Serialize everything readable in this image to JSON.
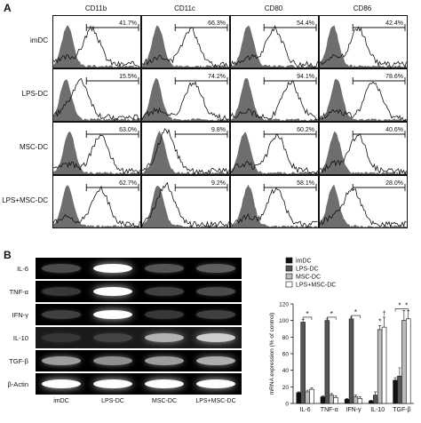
{
  "panelA": {
    "label": "A",
    "columns": [
      "CD11b",
      "CD11c",
      "CD80",
      "CD86"
    ],
    "rows": [
      {
        "label": "imDC",
        "values": [
          "41.7%",
          "66.3%",
          "54.4%",
          "42.4%"
        ]
      },
      {
        "label": "LPS-DC",
        "values": [
          "15.5%",
          "74.2%",
          "94.1%",
          "78.6%"
        ]
      },
      {
        "label": "MSC-DC",
        "values": [
          "63.0%",
          "9.8%",
          "60.2%",
          "40.6%"
        ]
      },
      {
        "label": "LPS+MSC-DC",
        "values": [
          "62.7%",
          "9.2%",
          "58.1%",
          "28.0%"
        ]
      }
    ]
  },
  "panelB": {
    "label": "B",
    "gel_rows": [
      "IL-6",
      "TNF-α",
      "IFN-γ",
      "IL-10",
      "TGF-β",
      "β-Actin"
    ],
    "lanes": [
      "imDC",
      "LPS-DC",
      "MSC-DC",
      "LPS+MSC-DC"
    ],
    "gel_intensity": [
      [
        0.35,
        1.0,
        0.4,
        0.45
      ],
      [
        0.25,
        1.0,
        0.3,
        0.35
      ],
      [
        0.3,
        1.0,
        0.25,
        0.3
      ],
      [
        0.15,
        0.25,
        0.75,
        0.85
      ],
      [
        0.7,
        0.65,
        0.7,
        0.75
      ],
      [
        1.0,
        1.0,
        1.0,
        1.0
      ]
    ]
  },
  "chart_data": {
    "type": "bar",
    "ylabel": "mRNA expression (% of control)",
    "ylim": [
      0,
      120
    ],
    "yticks": [
      "0",
      "20",
      "40",
      "60",
      "80",
      "100",
      "120"
    ],
    "categories": [
      "IL-6",
      "TNF-α",
      "IFN-γ",
      "IL-10",
      "TGF-β"
    ],
    "series": [
      {
        "name": "imDC",
        "color": "#111111",
        "values": [
          13,
          8,
          5,
          3,
          28
        ],
        "errors": [
          1,
          1,
          1,
          1,
          3
        ]
      },
      {
        "name": "LPS-DC",
        "color": "#555555",
        "values": [
          98,
          100,
          102,
          10,
          33
        ],
        "errors": [
          3,
          2,
          2,
          4,
          10
        ]
      },
      {
        "name": "MSC-DC",
        "color": "#bbbbbb",
        "values": [
          14,
          10,
          8,
          89,
          100
        ],
        "errors": [
          2,
          2,
          2,
          5,
          12
        ]
      },
      {
        "name": "LPS+MSC-DC",
        "color": "#ffffff",
        "values": [
          17,
          7,
          6,
          92,
          102
        ],
        "errors": [
          2,
          2,
          2,
          12,
          10
        ]
      }
    ],
    "annotations": [
      "*",
      "*",
      "*",
      "*",
      "†",
      "*",
      "*"
    ],
    "legend_position": "top-left"
  }
}
